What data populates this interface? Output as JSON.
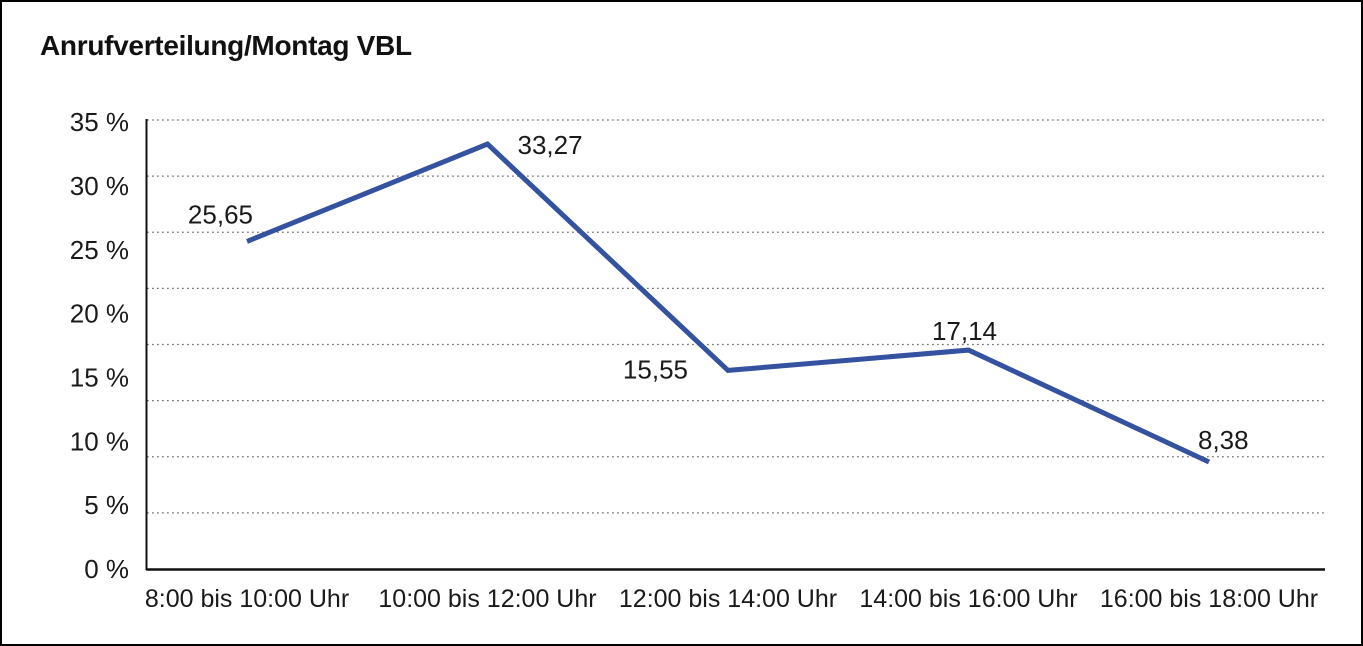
{
  "window": {
    "background": "#ffffff",
    "border_color": "#000000"
  },
  "header": {
    "title": "Anrufverteilung/Montag VBL"
  },
  "chart_data": {
    "type": "line",
    "title": "Anrufverteilung/Montag VBL",
    "categories": [
      "8:00 bis 10:00 Uhr",
      "10:00 bis 12:00 Uhr",
      "12:00 bis 14:00 Uhr",
      "14:00 bis 16:00 Uhr",
      "16:00 bis 18:00 Uhr"
    ],
    "values": [
      25.65,
      33.27,
      15.55,
      17.14,
      8.38
    ],
    "point_labels": [
      "25,65",
      "33,27",
      "15,55",
      "17,14",
      "8,38"
    ],
    "unit": "%",
    "xlabel": "",
    "ylabel": "",
    "ylim": [
      0,
      35
    ],
    "y_tick_values": [
      35,
      30,
      25,
      20,
      15,
      10,
      5,
      0
    ],
    "y_tick_labels": [
      "35 %",
      "30 %",
      "25 %",
      "20 %",
      "15 %",
      "10 %",
      "5 %",
      "0 %"
    ],
    "grid": "horizontal-dotted",
    "grid_intervals": 8,
    "legend": "none",
    "line_color": "#3552A0",
    "line_width": 5,
    "grid_color": "#555555",
    "axis_color": "#111111",
    "text_color": "#1a1a1a"
  }
}
